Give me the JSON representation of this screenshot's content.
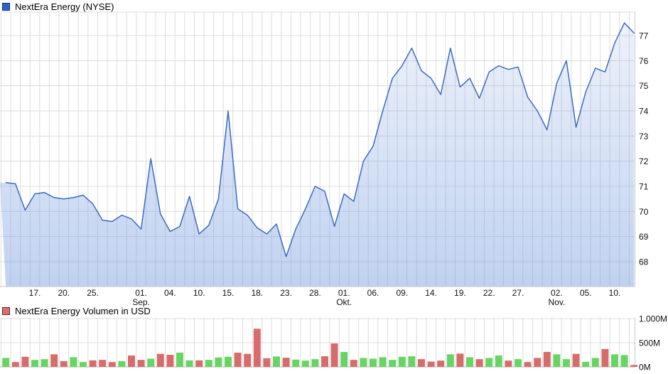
{
  "chart_data": [
    {
      "id": "price",
      "type": "area",
      "legend": "NextEra Energy (NYSE)",
      "ylabel": "",
      "ylim": [
        67.0,
        77.9
      ],
      "grid": true,
      "legend_position": "top-left",
      "y_axis_side": "right",
      "y_ticks": [
        68,
        69,
        70,
        71,
        72,
        73,
        74,
        75,
        76,
        77
      ],
      "x_ticks": [
        {
          "i": 3,
          "label": "17."
        },
        {
          "i": 6,
          "label": "20."
        },
        {
          "i": 9,
          "label": "25."
        },
        {
          "i": 14,
          "label": "01.",
          "sub": "Sep."
        },
        {
          "i": 17,
          "label": "04."
        },
        {
          "i": 20,
          "label": "10."
        },
        {
          "i": 23,
          "label": "15."
        },
        {
          "i": 26,
          "label": "18."
        },
        {
          "i": 29,
          "label": "23."
        },
        {
          "i": 32,
          "label": "28."
        },
        {
          "i": 35,
          "label": "01.",
          "sub": "Okt."
        },
        {
          "i": 38,
          "label": "06."
        },
        {
          "i": 41,
          "label": "09."
        },
        {
          "i": 44,
          "label": "14."
        },
        {
          "i": 47,
          "label": "19."
        },
        {
          "i": 50,
          "label": "22."
        },
        {
          "i": 53,
          "label": "27."
        },
        {
          "i": 57,
          "label": "02.",
          "sub": "Nov."
        },
        {
          "i": 60,
          "label": "05."
        },
        {
          "i": 63,
          "label": "10."
        }
      ],
      "values": [
        71.15,
        71.1,
        70.05,
        70.7,
        70.75,
        70.55,
        70.5,
        70.55,
        70.65,
        70.3,
        69.65,
        69.6,
        69.85,
        69.7,
        69.3,
        72.1,
        69.9,
        69.2,
        69.4,
        70.6,
        69.1,
        69.45,
        70.5,
        74.0,
        70.1,
        69.85,
        69.35,
        69.1,
        69.5,
        68.2,
        69.3,
        70.1,
        71.0,
        70.8,
        69.4,
        70.7,
        70.4,
        72.0,
        72.6,
        74.0,
        75.3,
        75.8,
        76.5,
        75.6,
        75.3,
        74.65,
        76.5,
        74.95,
        75.3,
        74.5,
        75.55,
        75.8,
        75.65,
        75.75,
        74.55,
        74.0,
        73.25,
        75.1,
        76.0,
        73.35,
        74.75,
        75.7,
        75.55,
        76.7,
        77.5,
        77.1
      ]
    },
    {
      "id": "volume",
      "type": "bar",
      "legend": "NextEra Energy Volumen in USD",
      "ylim": [
        0,
        1000
      ],
      "grid": true,
      "y_axis_side": "right",
      "y_ticks": [
        {
          "value": 0,
          "label": "0M"
        },
        {
          "value": 500,
          "label": "500M"
        },
        {
          "value": 1000,
          "label": "1.000M"
        }
      ],
      "values_musd": [
        185,
        100,
        210,
        145,
        160,
        260,
        120,
        200,
        100,
        135,
        145,
        100,
        120,
        235,
        145,
        170,
        270,
        250,
        295,
        135,
        135,
        145,
        195,
        210,
        295,
        270,
        790,
        180,
        215,
        190,
        150,
        130,
        160,
        220,
        485,
        310,
        145,
        185,
        170,
        200,
        145,
        210,
        220,
        160,
        110,
        130,
        260,
        275,
        200,
        160,
        185,
        235,
        130,
        160,
        100,
        185,
        310,
        260,
        160,
        270,
        105,
        185,
        370,
        260,
        245,
        40
      ],
      "direction": [
        "up",
        "down",
        "down",
        "up",
        "up",
        "down",
        "down",
        "up",
        "up",
        "down",
        "down",
        "down",
        "up",
        "down",
        "down",
        "up",
        "down",
        "down",
        "up",
        "up",
        "down",
        "up",
        "up",
        "up",
        "down",
        "down",
        "down",
        "down",
        "up",
        "down",
        "up",
        "up",
        "up",
        "down",
        "down",
        "up",
        "down",
        "up",
        "up",
        "up",
        "up",
        "up",
        "up",
        "down",
        "down",
        "down",
        "up",
        "down",
        "up",
        "down",
        "up",
        "up",
        "down",
        "up",
        "down",
        "down",
        "down",
        "up",
        "up",
        "down",
        "up",
        "up",
        "down",
        "up",
        "up",
        "down"
      ]
    }
  ],
  "colors": {
    "price_line": "#3b6cc0",
    "area_fill_base": "116,155,223",
    "up_bar": "#68d463",
    "down_bar": "#d76c6c",
    "grid": "#dcdcdc",
    "axis": "#c6c6c6",
    "text": "#111111",
    "price_legend_marker": "#2766c7",
    "volume_legend_marker": "#da7170",
    "background": "#ffffff"
  }
}
